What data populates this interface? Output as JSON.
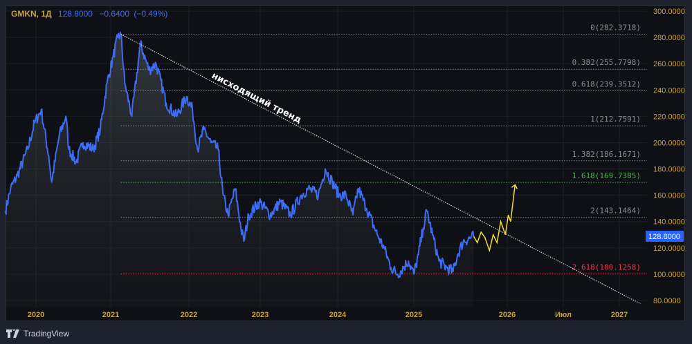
{
  "header": {
    "symbol": "GMKN, 1Д",
    "last": "128.8000",
    "change": "−0.6400",
    "change_pct": "(−0.49%)"
  },
  "brand": {
    "name": "TradingView"
  },
  "colors": {
    "price_line": "#3d6df5",
    "axis_text": "#c9a23a",
    "forecast": "#f5e030",
    "fib_default": "#8a8d96",
    "fib_green": "#4caf50",
    "fib_red": "#f23645",
    "trend": "#d1d4dc"
  },
  "chart_data": {
    "type": "line",
    "title": "GMKN, 1Д",
    "y_ticks": [
      "300.0000",
      "280.0000",
      "260.0000",
      "240.0000",
      "220.0000",
      "200.0000",
      "180.0000",
      "160.0000",
      "140.0000",
      "120.0000",
      "100.0000",
      "80.0000"
    ],
    "y_tick_values": [
      300,
      280,
      260,
      240,
      220,
      200,
      180,
      160,
      140,
      120,
      100,
      80
    ],
    "ylim": [
      80,
      300
    ],
    "x_ticks": [
      {
        "label": "2020",
        "x": 2020
      },
      {
        "label": "2021",
        "x": 2021
      },
      {
        "label": "2022",
        "x": 2022
      },
      {
        "label": "2023",
        "x": 2023
      },
      {
        "label": "2024",
        "x": 2024
      },
      {
        "label": "2025",
        "x": 2025
      },
      {
        "label": "2026",
        "x": 2026
      },
      {
        "label": "Июл",
        "x": 2026.5
      },
      {
        "label": "2027",
        "x": 2027
      }
    ],
    "price_label": "128.8000",
    "price": [
      [
        2019.59,
        148
      ],
      [
        2019.66,
        165
      ],
      [
        2019.75,
        175
      ],
      [
        2019.89,
        195
      ],
      [
        2019.98,
        215
      ],
      [
        2020.07,
        225
      ],
      [
        2020.17,
        190
      ],
      [
        2020.21,
        170
      ],
      [
        2020.31,
        205
      ],
      [
        2020.4,
        220
      ],
      [
        2020.44,
        195
      ],
      [
        2020.54,
        185
      ],
      [
        2020.63,
        200
      ],
      [
        2020.77,
        195
      ],
      [
        2020.86,
        210
      ],
      [
        2020.95,
        245
      ],
      [
        2021.03,
        265
      ],
      [
        2021.09,
        280
      ],
      [
        2021.13,
        282.37
      ],
      [
        2021.18,
        245
      ],
      [
        2021.27,
        220
      ],
      [
        2021.38,
        275
      ],
      [
        2021.49,
        255
      ],
      [
        2021.58,
        260
      ],
      [
        2021.71,
        230
      ],
      [
        2021.84,
        220
      ],
      [
        2021.97,
        235
      ],
      [
        2022.05,
        225
      ],
      [
        2022.12,
        195
      ],
      [
        2022.21,
        210
      ],
      [
        2022.31,
        200
      ],
      [
        2022.41,
        195
      ],
      [
        2022.48,
        160
      ],
      [
        2022.55,
        145
      ],
      [
        2022.65,
        165
      ],
      [
        2022.73,
        135
      ],
      [
        2022.77,
        125
      ],
      [
        2022.84,
        145
      ],
      [
        2022.99,
        155
      ],
      [
        2023.13,
        145
      ],
      [
        2023.26,
        155
      ],
      [
        2023.39,
        145
      ],
      [
        2023.53,
        160
      ],
      [
        2023.62,
        165
      ],
      [
        2023.75,
        160
      ],
      [
        2023.84,
        180
      ],
      [
        2023.93,
        170
      ],
      [
        2024.02,
        160
      ],
      [
        2024.11,
        160
      ],
      [
        2024.2,
        145
      ],
      [
        2024.27,
        165
      ],
      [
        2024.38,
        150
      ],
      [
        2024.52,
        130
      ],
      [
        2024.61,
        120
      ],
      [
        2024.7,
        105
      ],
      [
        2024.79,
        100
      ],
      [
        2024.93,
        110
      ],
      [
        2025.0,
        100
      ],
      [
        2025.05,
        115
      ],
      [
        2025.1,
        135
      ],
      [
        2025.14,
        148
      ],
      [
        2025.2,
        130
      ],
      [
        2025.27,
        110
      ],
      [
        2025.35,
        105
      ],
      [
        2025.42,
        102
      ],
      [
        2025.47,
        115
      ],
      [
        2025.53,
        125
      ],
      [
        2025.64,
        128.8
      ]
    ],
    "forecast": [
      [
        2025.64,
        128.8
      ],
      [
        2025.68,
        124
      ],
      [
        2025.72,
        132
      ],
      [
        2025.76,
        128
      ],
      [
        2025.81,
        118
      ],
      [
        2025.85,
        130
      ],
      [
        2025.89,
        124
      ],
      [
        2025.93,
        140
      ],
      [
        2025.98,
        130
      ],
      [
        2026.01,
        145
      ],
      [
        2026.03,
        140
      ],
      [
        2026.07,
        168
      ]
    ],
    "trendline": {
      "label": "нисходящий тренд",
      "from": [
        2021.13,
        282.37
      ],
      "to": [
        2027.19,
        77.5
      ]
    },
    "fib_start": 2021.13,
    "fib_levels": [
      {
        "label": "0(282.3718)",
        "value": 282.3718,
        "color": "default"
      },
      {
        "label": "0.382(255.7798)",
        "value": 255.7798,
        "color": "default"
      },
      {
        "label": "0.618(239.3512)",
        "value": 239.3512,
        "color": "default"
      },
      {
        "label": "1(212.7591)",
        "value": 212.7591,
        "color": "default"
      },
      {
        "label": "1.382(186.1671)",
        "value": 186.1671,
        "color": "default"
      },
      {
        "label": "1.618(169.7385)",
        "value": 169.7385,
        "color": "green"
      },
      {
        "label": "2(143.1464)",
        "value": 143.1464,
        "color": "default"
      },
      {
        "label": "2.618(100.1258)",
        "value": 100.1258,
        "color": "red"
      }
    ]
  }
}
